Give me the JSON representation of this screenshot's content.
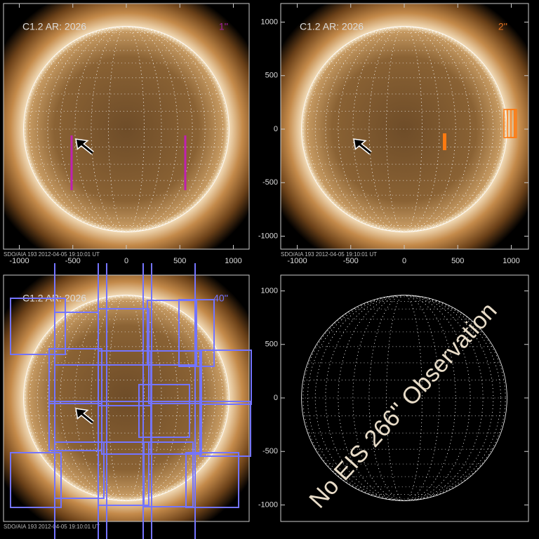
{
  "panels": [
    {
      "label": "C1.2 AR: 2026",
      "resolution": "1''",
      "footer": "SDO/AIA 193  2012-04-05 19:10:01 UT",
      "xticks": [
        -1000,
        -500,
        0,
        500,
        1000
      ]
    },
    {
      "label": "C1.2 AR: 2026",
      "resolution": "2''",
      "footer": "SDO/AIA 193  2012-04-05 19:10:01 UT",
      "xticks": [
        -1000,
        -500,
        0,
        500,
        1000
      ],
      "yticks": [
        -1000,
        -500,
        0,
        500,
        1000
      ]
    },
    {
      "label": "C1.2 AR: 2026",
      "resolution": "40''",
      "footer": "SDO/AIA 193  2012-04-05 19:10:01 UT"
    },
    {
      "message": "No EIS 266'' Observation",
      "yticks": [
        -1000,
        -500,
        0,
        500,
        1000
      ]
    }
  ]
}
